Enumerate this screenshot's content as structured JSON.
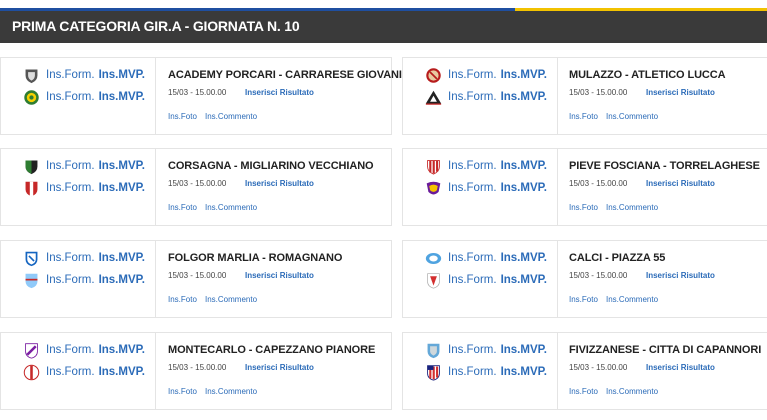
{
  "header": {
    "title": "PRIMA CATEGORIA GIR.A - GIORNATA N. 10"
  },
  "links": {
    "form": "Ins.Form.",
    "mvp": "Ins.MVP.",
    "result": "Inserisci Risultato",
    "foto": "Ins.Foto",
    "comment": "Ins.Commento"
  },
  "matches": [
    {
      "title": "ACADEMY PORCARI - CARRARESE GIOVANI",
      "datetime": "15/03 - 15.00.00",
      "home_logo": "shield-grey-icon",
      "away_logo": "shield-yellow-green-icon"
    },
    {
      "title": "MULAZZO - ATLETICO LUCCA",
      "datetime": "15/03 - 15.00.00",
      "home_logo": "crest-red-icon",
      "away_logo": "triangle-black-red-icon"
    },
    {
      "title": "CORSAGNA - MIGLIARINO VECCHIANO",
      "datetime": "15/03 - 15.00.00",
      "home_logo": "shield-green-black-icon",
      "away_logo": "crest-red-white-icon"
    },
    {
      "title": "PIEVE FOSCIANA - TORRELAGHESE",
      "datetime": "15/03 - 15.00.00",
      "home_logo": "shield-red-stripes-icon",
      "away_logo": "shield-purple-yellow-icon"
    },
    {
      "title": "FOLGOR MARLIA - ROMAGNANO",
      "datetime": "15/03 - 15.00.00",
      "home_logo": "shield-blue-white-icon",
      "away_logo": "shield-lightblue-icon"
    },
    {
      "title": "CALCI - PIAZZA 55",
      "datetime": "15/03 - 15.00.00",
      "home_logo": "crest-lightblue-icon",
      "away_logo": "shield-red-white-icon"
    },
    {
      "title": "MONTECARLO - CAPEZZANO PIANORE",
      "datetime": "15/03 - 15.00.00",
      "home_logo": "shield-purple-white-icon",
      "away_logo": "crest-red-white-round-icon"
    },
    {
      "title": "FIVIZZANESE - CITTA DI CAPANNORI",
      "datetime": "15/03 - 15.00.00",
      "home_logo": "shield-lightblue-grey-icon",
      "away_logo": "shield-red-white-stripes-icon"
    }
  ],
  "colors": {
    "accent_blue": "#1f4fa0",
    "accent_yellow": "#f2c200",
    "link": "#2b6bb8",
    "header_bg": "#3a3a3a"
  }
}
